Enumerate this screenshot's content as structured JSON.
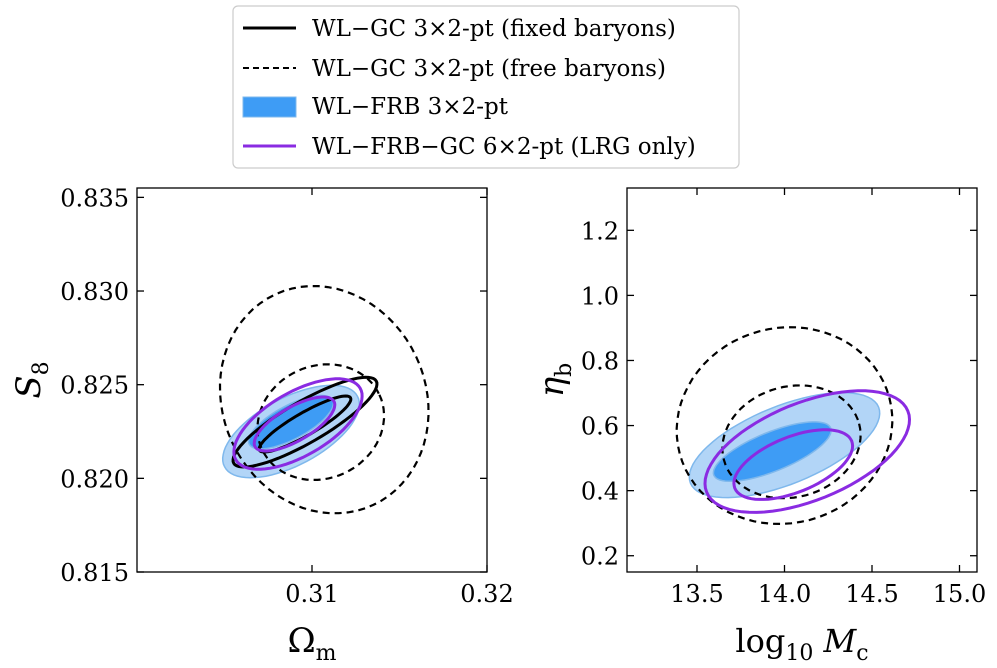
{
  "legend": {
    "items": [
      {
        "label": "WL−GC 3×2-pt (fixed baryons)",
        "style": "solid-black"
      },
      {
        "label": "WL−GC 3×2-pt (free baryons)",
        "style": "dashed-black"
      },
      {
        "label": "WL−FRB 3×2-pt",
        "style": "filled-blue"
      },
      {
        "label": "WL−FRB−GC 6×2-pt (LRG only)",
        "style": "solid-purple"
      }
    ]
  },
  "colors": {
    "black": "#000000",
    "blue_inner": "#3e9cf5",
    "blue_outer": "#b2d5f7",
    "blue_edge": "#7fb8ec",
    "purple": "#8a2be2"
  },
  "chart_data": [
    {
      "type": "contour",
      "xlabel": "Ωm",
      "ylabel": "S8",
      "xlim": [
        0.3,
        0.32
      ],
      "ylim": [
        0.815,
        0.8355
      ],
      "xticks": [
        "0.31",
        "0.32"
      ],
      "yticks": [
        "0.815",
        "0.820",
        "0.825",
        "0.830",
        "0.835"
      ],
      "series": [
        {
          "name": "WL−FRB 3×2-pt",
          "style": "filled-blue",
          "contours": [
            {
              "level": "outer",
              "center": [
                0.3088,
                0.8225
              ],
              "semi_axes": [
                0.0043,
                0.0018
              ],
              "angle_deg": 28
            },
            {
              "level": "inner",
              "center": [
                0.3088,
                0.823
              ],
              "semi_axes": [
                0.0027,
                0.0009
              ],
              "angle_deg": 28
            }
          ]
        },
        {
          "name": "WL−GC 3×2-pt (fixed baryons)",
          "style": "solid-black",
          "contours": [
            {
              "level": "outer",
              "center": [
                0.3096,
                0.823
              ],
              "semi_axes": [
                0.0047,
                0.0011
              ],
              "angle_deg": 30
            },
            {
              "level": "inner",
              "center": [
                0.3096,
                0.8229
              ],
              "semi_axes": [
                0.003,
                0.0006
              ],
              "angle_deg": 30
            }
          ]
        },
        {
          "name": "WL−GC 3×2-pt (free baryons)",
          "style": "dashed-black",
          "contours": [
            {
              "level": "outer",
              "center": [
                0.3107,
                0.8242
              ],
              "semi_axes": [
                0.0058,
                0.0062
              ],
              "angle_deg": 25
            },
            {
              "level": "inner",
              "center": [
                0.3105,
                0.823
              ],
              "semi_axes": [
                0.0037,
                0.003
              ],
              "angle_deg": 25
            }
          ]
        },
        {
          "name": "WL−FRB−GC 6×2-pt (LRG only)",
          "style": "solid-purple",
          "contours": [
            {
              "level": "outer",
              "center": [
                0.3092,
                0.8229
              ],
              "semi_axes": [
                0.0041,
                0.0017
              ],
              "angle_deg": 30
            },
            {
              "level": "inner",
              "center": [
                0.309,
                0.8229
              ],
              "semi_axes": [
                0.0026,
                0.0009
              ],
              "angle_deg": 30
            }
          ]
        }
      ]
    },
    {
      "type": "contour",
      "xlabel": "log10 Mc",
      "ylabel": "ηb",
      "xlim": [
        13.1,
        15.1
      ],
      "ylim": [
        0.15,
        1.33
      ],
      "xticks": [
        "13.5",
        "14.0",
        "14.5",
        "15.0"
      ],
      "yticks": [
        "0.2",
        "0.4",
        "0.6",
        "0.8",
        "1.0",
        "1.2"
      ],
      "series": [
        {
          "name": "WL−FRB 3×2-pt",
          "style": "filled-blue",
          "contours": [
            {
              "level": "outer",
              "center": [
                14.0,
                0.54
              ],
              "semi_axes": [
                0.58,
                0.12
              ],
              "angle_deg": 22
            },
            {
              "level": "inner",
              "center": [
                13.93,
                0.52
              ],
              "semi_axes": [
                0.36,
                0.06
              ],
              "angle_deg": 22
            }
          ]
        },
        {
          "name": "WL−GC 3×2-pt (free baryons)",
          "style": "dashed-black",
          "contours": [
            {
              "level": "outer",
              "center": [
                14.0,
                0.6
              ],
              "semi_axes": [
                0.62,
                0.3
              ],
              "angle_deg": 15
            },
            {
              "level": "inner",
              "center": [
                14.04,
                0.55
              ],
              "semi_axes": [
                0.4,
                0.17
              ],
              "angle_deg": 15
            }
          ]
        },
        {
          "name": "WL−FRB−GC 6×2-pt (LRG only)",
          "style": "solid-purple",
          "contours": [
            {
              "level": "outer",
              "center": [
                14.13,
                0.52
              ],
              "semi_axes": [
                0.62,
                0.15
              ],
              "angle_deg": 22
            },
            {
              "level": "inner",
              "center": [
                14.05,
                0.48
              ],
              "semi_axes": [
                0.36,
                0.085
              ],
              "angle_deg": 22
            }
          ]
        }
      ]
    }
  ]
}
